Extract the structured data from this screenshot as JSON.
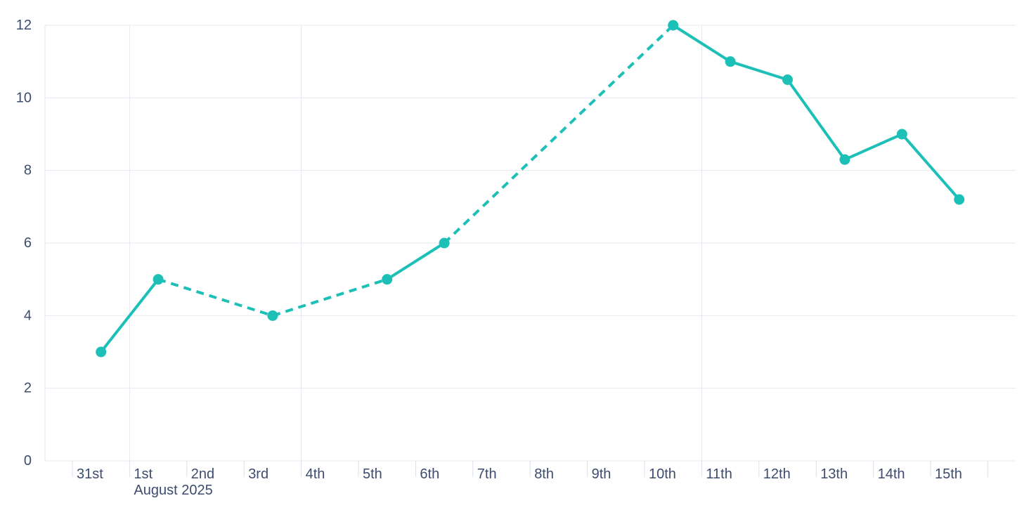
{
  "chart": {
    "series_color": "#1cc0b7",
    "gridline_color": "#e5e8f1",
    "tick_color": "#dbe0ec",
    "axis_label_color": "#3d4c6e",
    "background_color": "#ffffff"
  },
  "chart_data": {
    "type": "line",
    "title": "",
    "xlabel": "",
    "ylabel": "",
    "x_axis_secondary_label": "August 2025",
    "x_tick_labels": [
      "31st",
      "1st",
      "2nd",
      "3rd",
      "4th",
      "5th",
      "6th",
      "7th",
      "8th",
      "9th",
      "10th",
      "11th",
      "12th",
      "13th",
      "14th",
      "15th"
    ],
    "y_ticks": [
      0,
      2,
      4,
      6,
      8,
      10,
      12
    ],
    "ylim": [
      0,
      12
    ],
    "grid": {
      "horizontal": true,
      "vertical_at_labels": [
        "1st",
        "4th",
        "11th"
      ],
      "left_plot_border": true
    },
    "legend_position": "none",
    "series": [
      {
        "name": "daily-values",
        "color": "#1cc0b7",
        "marker": "circle",
        "gap_segment_style": "dashed",
        "points": [
          {
            "date": "31st",
            "day_index": 0,
            "value": 3
          },
          {
            "date": "1st",
            "day_index": 1,
            "value": 5
          },
          {
            "date": "3rd",
            "day_index": 3,
            "value": 4
          },
          {
            "date": "5th",
            "day_index": 5,
            "value": 5
          },
          {
            "date": "6th",
            "day_index": 6,
            "value": 6
          },
          {
            "date": "10th",
            "day_index": 10,
            "value": 12
          },
          {
            "date": "11th",
            "day_index": 11,
            "value": 11
          },
          {
            "date": "12th",
            "day_index": 12,
            "value": 10.5
          },
          {
            "date": "13th",
            "day_index": 13,
            "value": 8.3
          },
          {
            "date": "14th",
            "day_index": 14,
            "value": 9
          },
          {
            "date": "15th",
            "day_index": 15,
            "value": 7.2
          }
        ]
      }
    ]
  }
}
